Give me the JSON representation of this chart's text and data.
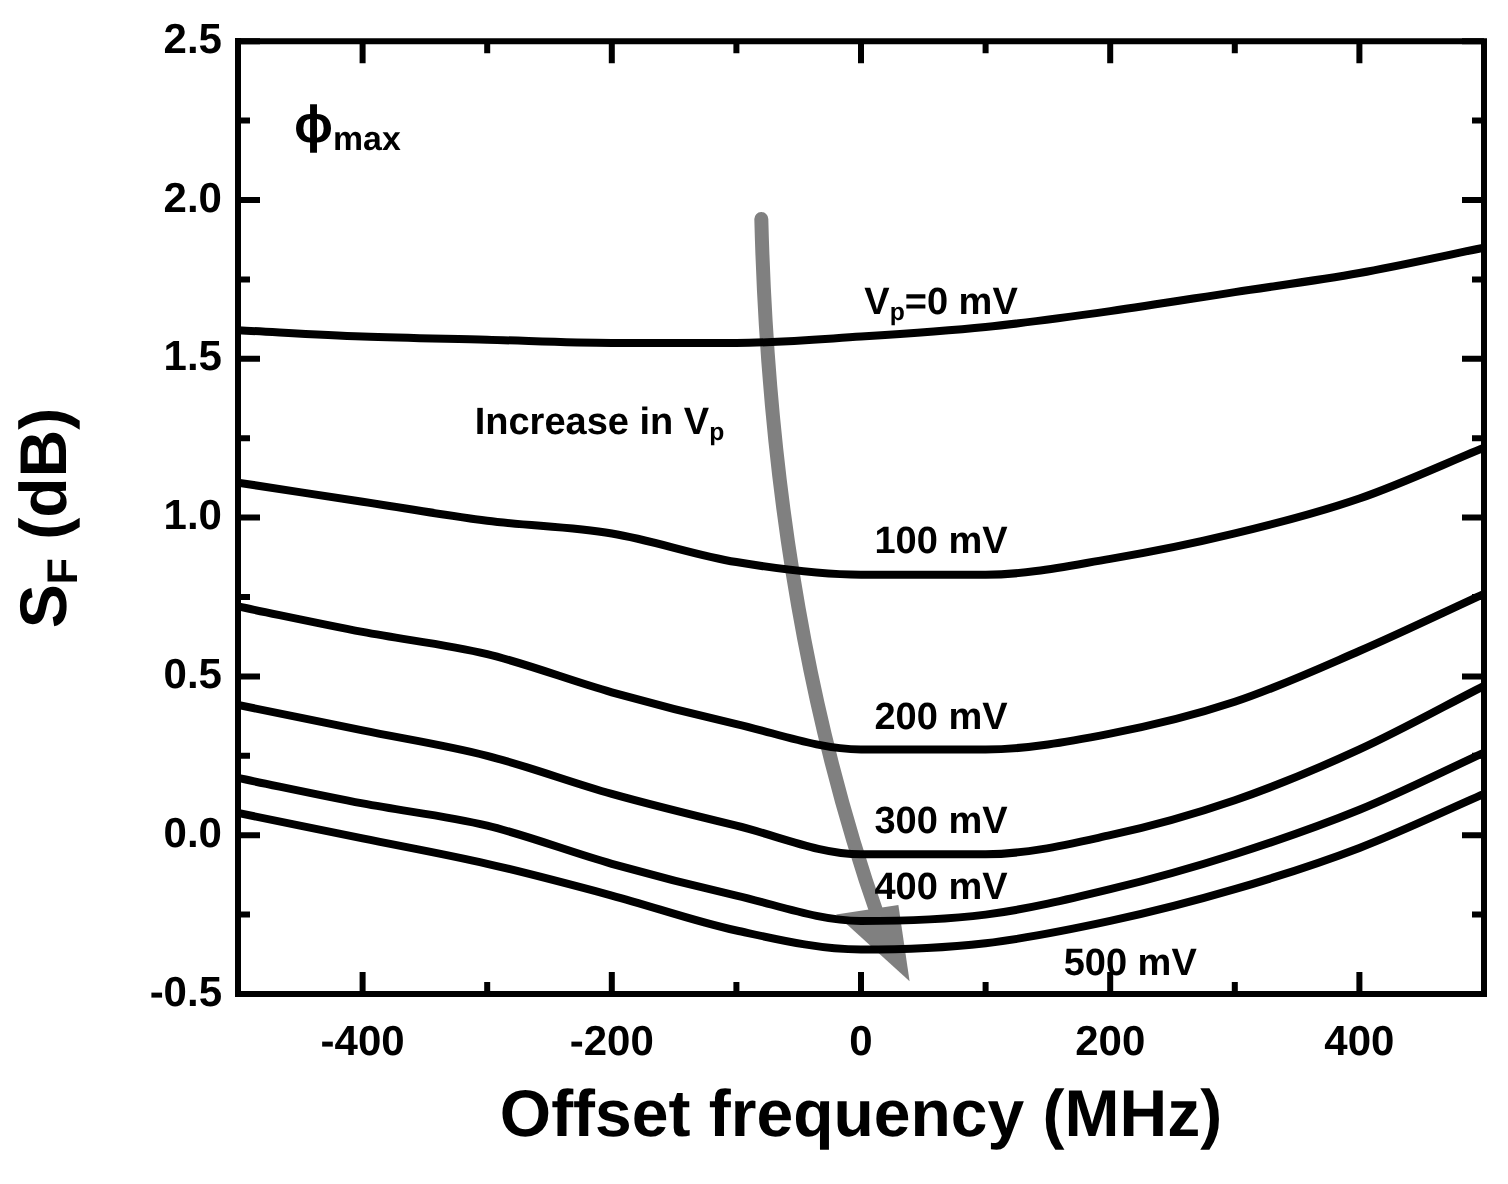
{
  "chart_data": {
    "type": "line",
    "xlabel": "Offset frequency (MHz)",
    "ylabel": "S$_{F}$ (dB)",
    "x": [
      -500,
      -400,
      -300,
      -200,
      -100,
      0,
      100,
      200,
      300,
      400,
      500
    ],
    "series": [
      {
        "name": "V$_{p}$=0 mV",
        "color": "#000000",
        "values": [
          1.59,
          1.57,
          1.56,
          1.55,
          1.55,
          1.57,
          1.6,
          1.65,
          1.71,
          1.77,
          1.85
        ]
      },
      {
        "name": "100 mV",
        "color": "#000000",
        "values": [
          1.11,
          1.05,
          0.99,
          0.95,
          0.86,
          0.82,
          0.82,
          0.87,
          0.95,
          1.06,
          1.22
        ]
      },
      {
        "name": "200 mV",
        "color": "#000000",
        "values": [
          0.72,
          0.64,
          0.57,
          0.45,
          0.35,
          0.27,
          0.27,
          0.32,
          0.42,
          0.58,
          0.76
        ]
      },
      {
        "name": "300 mV",
        "color": "#000000",
        "values": [
          0.41,
          0.33,
          0.25,
          0.13,
          0.03,
          -0.06,
          -0.06,
          0.0,
          0.11,
          0.27,
          0.47
        ]
      },
      {
        "name": "400 mV",
        "color": "#000000",
        "values": [
          0.18,
          0.1,
          0.03,
          -0.09,
          -0.19,
          -0.27,
          -0.25,
          -0.17,
          -0.06,
          0.08,
          0.26
        ]
      },
      {
        "name": "500 mV",
        "color": "#000000",
        "values": [
          0.07,
          -0.01,
          -0.09,
          -0.19,
          -0.3,
          -0.36,
          -0.34,
          -0.27,
          -0.17,
          -0.04,
          0.13
        ]
      }
    ],
    "xlim": [
      -500,
      500
    ],
    "xticks": [
      {
        "value": -500,
        "label": null
      },
      -400,
      {
        "value": -300,
        "label": null
      },
      -200,
      {
        "value": -100,
        "label": null
      },
      0,
      {
        "value": 100,
        "label": null
      },
      200,
      {
        "value": 300,
        "label": null
      },
      400,
      {
        "value": 500,
        "label": null
      }
    ],
    "ylim": [
      -0.5,
      2.5
    ],
    "yticks": [
      -0.5,
      {
        "value": -0.25,
        "label": null
      },
      {
        "value": 0,
        "label": "0.0"
      },
      {
        "value": 0.25,
        "label": null
      },
      0.5,
      {
        "value": 0.75,
        "label": null
      },
      {
        "value": 1,
        "label": "1.0"
      },
      {
        "value": 1.25,
        "label": null
      },
      1.5,
      {
        "value": 1.75,
        "label": null
      },
      {
        "value": 2,
        "label": "2.0"
      },
      {
        "value": 2.25,
        "label": null
      },
      2.5
    ],
    "grid": false,
    "legend": false,
    "marker": "none",
    "line_style": "solid",
    "annotations": [
      "ϕ$_{max}$",
      "Increase in V$_{p}$"
    ]
  }
}
